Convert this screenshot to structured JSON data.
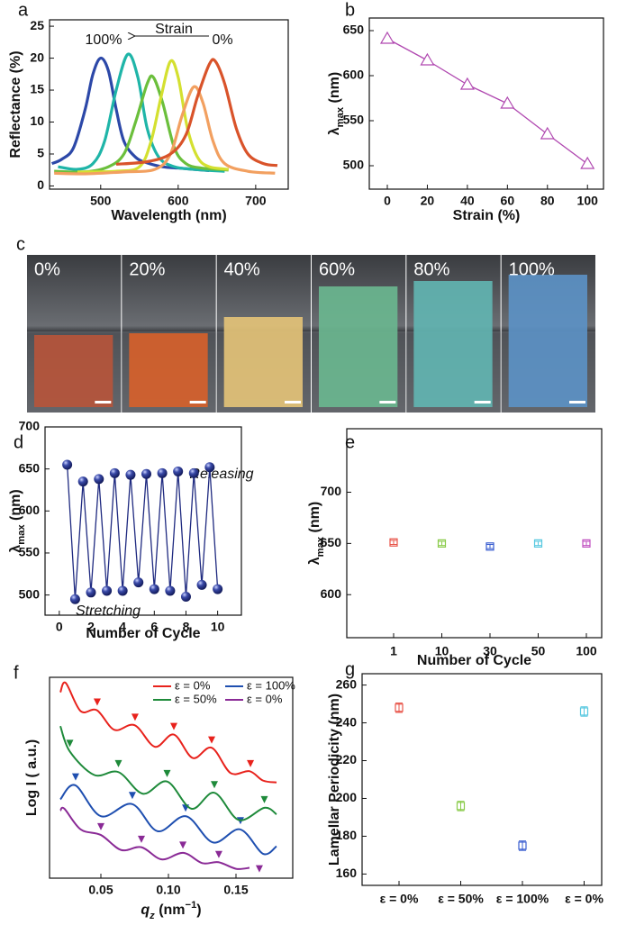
{
  "chart_data": [
    {
      "label": "a",
      "type": "line",
      "smooth": true,
      "marker": null,
      "xlabel": [
        {
          "text": "Wavelength (nm)"
        }
      ],
      "ylabel": [
        {
          "text": "Reflectance (%)"
        }
      ],
      "xlim": [
        434,
        742
      ],
      "ylim": [
        -0.5,
        26
      ],
      "xticks": [
        500,
        600,
        700
      ],
      "yticks": [
        0,
        5,
        10,
        15,
        20,
        25
      ],
      "annotations": [
        "100%",
        "Strain",
        "0%"
      ],
      "series": [
        {
          "color": "#2c48a8",
          "x": [
            437,
            450,
            465,
            480,
            490,
            500,
            510,
            520,
            530,
            545,
            560,
            580,
            600,
            620,
            640
          ],
          "values": [
            3.5,
            4.2,
            6,
            12,
            17.5,
            20,
            18,
            12,
            7,
            4.5,
            3.6,
            3.0,
            2.8,
            2.6,
            2.4
          ]
        },
        {
          "color": "#1fb5a8",
          "x": [
            445,
            470,
            490,
            505,
            520,
            535,
            548,
            560,
            575,
            595,
            620,
            660
          ],
          "values": [
            3.0,
            2.6,
            3.5,
            7,
            15,
            20.6,
            17,
            9,
            4.5,
            3.0,
            2.6,
            2.3
          ]
        },
        {
          "color": "#6bbf3c",
          "x": [
            440,
            480,
            510,
            530,
            545,
            560,
            568,
            580,
            595,
            610,
            630,
            665
          ],
          "values": [
            2.3,
            2.2,
            3.0,
            5,
            10,
            16,
            17,
            13,
            6,
            3.5,
            2.8,
            2.5
          ]
        },
        {
          "color": "#d4e030",
          "x": [
            470,
            520,
            550,
            565,
            578,
            590,
            600,
            612,
            625,
            640,
            665
          ],
          "values": [
            2.2,
            2.3,
            3,
            7,
            14,
            19.5,
            17,
            9,
            4.5,
            3,
            2.6
          ]
        },
        {
          "color": "#f2a060",
          "x": [
            440,
            480,
            530,
            570,
            590,
            605,
            620,
            632,
            645,
            660,
            690,
            725
          ],
          "values": [
            2.0,
            1.9,
            2.2,
            2.6,
            5,
            11,
            15.5,
            13,
            7,
            3.5,
            2.3,
            2.0
          ]
        },
        {
          "color": "#d9532a",
          "x": [
            520,
            560,
            590,
            610,
            625,
            640,
            648,
            660,
            675,
            690,
            710,
            728
          ],
          "values": [
            3.4,
            3.8,
            5,
            8,
            14,
            19,
            19.5,
            16,
            9,
            5,
            3.5,
            3.2
          ]
        }
      ]
    },
    {
      "label": "b",
      "type": "line",
      "smooth": false,
      "marker": "triangle",
      "xlabel": [
        {
          "text": "Strain (%)"
        }
      ],
      "ylabel": [
        {
          "text": "λ"
        },
        {
          "text": "max",
          "shift": "sub"
        },
        {
          "text": " (nm)"
        }
      ],
      "xlim": [
        -9,
        108
      ],
      "ylim": [
        474,
        664
      ],
      "xticks": [
        0,
        20,
        40,
        60,
        80,
        100
      ],
      "yticks": [
        500,
        550,
        600,
        650
      ],
      "series": [
        {
          "color": "#b048b0",
          "x": [
            0,
            20,
            40,
            60,
            80,
            100
          ],
          "values": [
            641,
            617,
            590,
            569,
            535,
            502
          ]
        }
      ]
    },
    {
      "label": "d",
      "type": "line",
      "smooth": false,
      "marker": "sphere",
      "xlabel": [
        {
          "text": "Number of Cycle"
        }
      ],
      "ylabel": [
        {
          "text": "λ"
        },
        {
          "text": "max",
          "shift": "sub"
        },
        {
          "text": " (nm)"
        }
      ],
      "xlim": [
        -0.9,
        11.5
      ],
      "ylim": [
        476,
        700
      ],
      "xticks": [
        0,
        2,
        4,
        6,
        8,
        10
      ],
      "yticks": [
        500,
        550,
        600,
        650,
        700
      ],
      "annotations": [
        "Releasing",
        "Stretching"
      ],
      "series": [
        {
          "color": "#1f2a80",
          "x": [
            0.5,
            1,
            1.5,
            2,
            2.5,
            3,
            3.5,
            4,
            4.5,
            5,
            5.5,
            6,
            6.5,
            7,
            7.5,
            8,
            8.5,
            9,
            9.5,
            10
          ],
          "values": [
            655,
            495,
            635,
            503,
            638,
            505,
            645,
            505,
            643,
            515,
            644,
            507,
            645,
            505,
            647,
            498,
            645,
            512,
            652,
            507
          ]
        }
      ]
    },
    {
      "label": "e",
      "type": "scatter",
      "xlabel": [
        {
          "text": "Number of Cycle"
        }
      ],
      "ylabel": [
        {
          "text": "λ"
        },
        {
          "text": "max",
          "shift": "sub"
        },
        {
          "text": " (nm)"
        }
      ],
      "ylim": [
        558,
        762
      ],
      "yticks": [
        600,
        650,
        700
      ],
      "categories": [
        "1",
        "10",
        "30",
        "50",
        "100"
      ],
      "values": [
        651,
        650,
        647,
        650,
        650
      ],
      "errors": [
        2,
        2,
        2,
        2,
        2
      ],
      "colors": [
        "#e8554a",
        "#8acb4a",
        "#3a5ed0",
        "#58c8e0",
        "#c050c0"
      ]
    },
    {
      "label": "f",
      "type": "line",
      "smooth": true,
      "marker": null,
      "legend": "upper right",
      "xlabel": [
        {
          "text": "q",
          "italic": true
        },
        {
          "text": "z",
          "shift": "sub",
          "italic": true
        },
        {
          "text": " (nm"
        },
        {
          "text": "−1",
          "shift": "super"
        },
        {
          "text": ")"
        }
      ],
      "ylabel": [
        {
          "text": "Log I ( a.u.)"
        }
      ],
      "xlim": [
        0.012,
        0.192
      ],
      "ylim": [
        -0.5,
        10.2
      ],
      "xticks": [
        0.05,
        {
          "value": 0.1,
          "label": "0.10"
        },
        0.15
      ],
      "series": [
        {
          "name": "ε = 0%",
          "color": "#e8221c",
          "x": [
            0.02,
            0.024,
            0.035,
            0.047,
            0.06,
            0.075,
            0.09,
            0.104,
            0.118,
            0.132,
            0.146,
            0.16,
            0.17,
            0.18
          ],
          "values": [
            9.4,
            9.9,
            8.4,
            8.45,
            7.4,
            7.65,
            6.5,
            7.15,
            5.9,
            6.45,
            5.1,
            5.2,
            4.7,
            4.6
          ],
          "peaks": {
            "x": [
              0.0473,
              0.0753,
              0.104,
              0.132,
              0.1607
            ],
            "values": [
              8.88,
              8.07,
              7.58,
              6.86,
              5.6
            ]
          }
        },
        {
          "name": "ε = 100%",
          "color": "#1f4fb0",
          "x": [
            0.02,
            0.031,
            0.05,
            0.073,
            0.092,
            0.113,
            0.133,
            0.153,
            0.17,
            0.18
          ],
          "values": [
            3.7,
            4.45,
            2.8,
            3.45,
            2.0,
            2.8,
            1.4,
            2.1,
            0.8,
            1.2
          ],
          "peaks": {
            "x": [
              0.0313,
              0.0733,
              0.1127,
              0.1533
            ],
            "values": [
              4.89,
              3.9,
              3.23,
              2.56
            ]
          }
        },
        {
          "name": "ε = 50%",
          "color": "#1e8a3a",
          "x": [
            0.02,
            0.027,
            0.045,
            0.063,
            0.081,
            0.099,
            0.117,
            0.134,
            0.152,
            0.171,
            0.18
          ],
          "values": [
            7.6,
            6.25,
            5.0,
            5.15,
            4.0,
            4.65,
            3.2,
            4.05,
            2.6,
            3.25,
            2.9
          ],
          "peaks": {
            "x": [
              0.027,
              0.063,
              0.099,
              0.134,
              0.171
            ],
            "values": [
              6.68,
              5.6,
              5.07,
              4.48,
              3.68
            ]
          }
        },
        {
          "name": "ε =  0%",
          "color": "#8a2a96",
          "x": [
            0.02,
            0.023,
            0.035,
            0.05,
            0.065,
            0.08,
            0.095,
            0.111,
            0.125,
            0.137,
            0.15,
            0.16
          ],
          "values": [
            3.1,
            3.2,
            2.1,
            1.8,
            1.0,
            1.15,
            0.5,
            0.85,
            0.3,
            0.35,
            0.0,
            0.05
          ],
          "peaks": {
            "x": [
              0.05,
              0.08,
              0.1107,
              0.1373,
              0.1673
            ],
            "values": [
              2.24,
              1.57,
              1.26,
              0.76,
              0.0
            ]
          }
        }
      ]
    },
    {
      "label": "g",
      "type": "scatter",
      "ylabel": [
        {
          "text": "Lamellar Periodicity (nm)"
        }
      ],
      "ylim": [
        154,
        266
      ],
      "yticks": [
        160,
        180,
        200,
        220,
        240,
        260
      ],
      "categories": [
        "ε = 0%",
        "ε = 50%",
        "ε = 100%",
        "ε = 0%"
      ],
      "values": [
        248,
        196,
        175,
        246
      ],
      "errors": [
        2.5,
        2.5,
        2.5,
        2.5
      ],
      "colors": [
        "#e8554a",
        "#8acb4a",
        "#3a5ed0",
        "#58c8e0"
      ]
    }
  ],
  "photo_strip": {
    "label": "c",
    "strains": [
      "0%",
      "20%",
      "40%",
      "60%",
      "80%",
      "100%"
    ]
  }
}
